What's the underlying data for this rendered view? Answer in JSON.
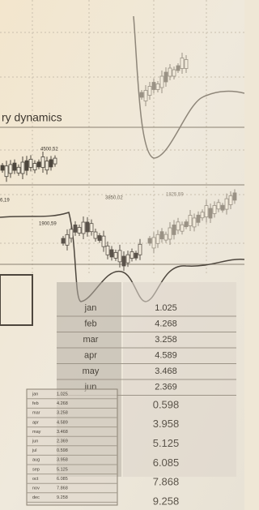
{
  "header": {
    "title": "ry dynamics"
  },
  "annotations": [
    "4500,52",
    "6,19",
    "1900,59",
    "3850,02",
    "1825,59"
  ],
  "big_table": {
    "rows": [
      [
        "jan",
        "1.025"
      ],
      [
        "feb",
        "4.268"
      ],
      [
        "mar",
        "3.258"
      ],
      [
        "apr",
        "4.589"
      ],
      [
        "may",
        "3.468"
      ],
      [
        "jun",
        "2.369"
      ]
    ],
    "more_values": [
      "0.598",
      "3.958",
      "5.125",
      "6.085",
      "7.868",
      "9.258"
    ]
  },
  "small_table": {
    "rows": [
      [
        "jan",
        "1.025"
      ],
      [
        "feb",
        "4.268"
      ],
      [
        "mar",
        "3.258"
      ],
      [
        "apr",
        "4.589"
      ],
      [
        "may",
        "3.468"
      ],
      [
        "jun",
        "2.369"
      ],
      [
        "jul",
        "0.598"
      ],
      [
        "aug",
        "3.958"
      ],
      [
        "sep",
        "5.125"
      ],
      [
        "oct",
        "6.085"
      ],
      [
        "nov",
        "7.868"
      ],
      [
        "dec",
        "9.258"
      ]
    ]
  }
}
